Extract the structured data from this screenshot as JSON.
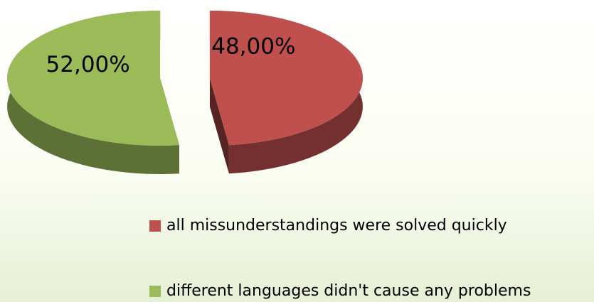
{
  "chart_data": {
    "type": "pie",
    "categories": [
      "all missunderstandings were solved quickly",
      "different languages didn't cause any problems"
    ],
    "values": [
      48,
      52
    ],
    "value_labels": [
      "48,00%",
      "52,00%"
    ],
    "colors": [
      "#c0504d",
      "#9bbb59"
    ],
    "legend": "bottom-right"
  }
}
